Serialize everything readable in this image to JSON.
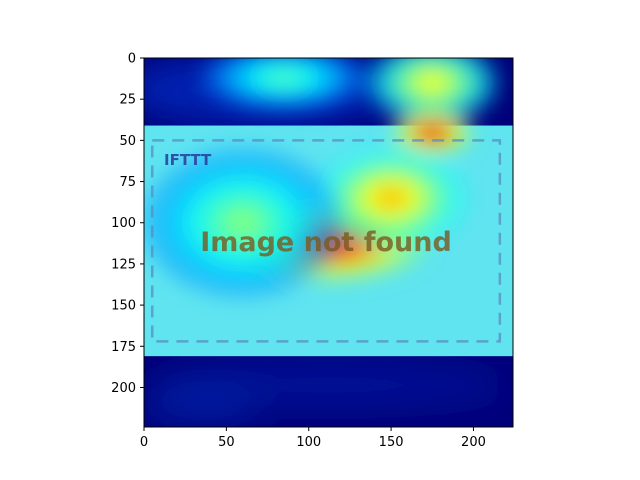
{
  "chart_data": {
    "type": "heatmap",
    "title": "",
    "xlabel": "",
    "ylabel": "",
    "xlim": [
      0,
      224
    ],
    "ylim": [
      224,
      0
    ],
    "x_ticks": [
      0,
      50,
      100,
      150,
      200
    ],
    "y_ticks": [
      0,
      25,
      50,
      75,
      100,
      125,
      150,
      175,
      200
    ],
    "colormap": "jet",
    "overlay_image": {
      "logo_text": "IFTTT",
      "message": "Image not found",
      "placeholder_bounds": {
        "x": [
          0,
          224
        ],
        "y": [
          41,
          181
        ]
      },
      "dashed_frame": {
        "x": [
          5,
          216
        ],
        "y": [
          50,
          172
        ]
      }
    },
    "activation_blobs": [
      {
        "x": 175,
        "y": 15,
        "intensity": 0.62,
        "rx": 40,
        "ry": 25
      },
      {
        "x": 175,
        "y": 45,
        "intensity": 0.92,
        "rx": 25,
        "ry": 14
      },
      {
        "x": 85,
        "y": 12,
        "intensity": 0.45,
        "rx": 50,
        "ry": 20
      },
      {
        "x": 110,
        "y": 112,
        "intensity": 0.95,
        "rx": 62,
        "ry": 24
      },
      {
        "x": 150,
        "y": 85,
        "intensity": 0.7,
        "rx": 45,
        "ry": 30
      },
      {
        "x": 60,
        "y": 100,
        "intensity": 0.5,
        "rx": 60,
        "ry": 45
      }
    ]
  }
}
